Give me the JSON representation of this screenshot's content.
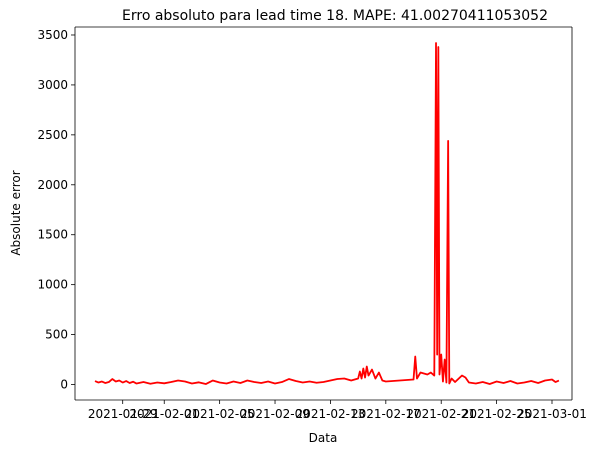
{
  "chart_data": {
    "type": "line",
    "title": "Erro absoluto para lead time 18. MAPE: 41.00270411053052",
    "xlabel": "Data",
    "ylabel": "Absolute error",
    "xlim": [
      "2021-01-27",
      "2021-03-01"
    ],
    "ylim": [
      -155,
      3580
    ],
    "grid": false,
    "legend": "none",
    "line_color": "#ff0000",
    "x_ticks": [
      {
        "label": "2021-01-29",
        "date": "2021-01-29"
      },
      {
        "label": "2021-02-01",
        "date": "2021-02-01"
      },
      {
        "label": "2021-02-05",
        "date": "2021-02-05"
      },
      {
        "label": "2021-02-09",
        "date": "2021-02-09"
      },
      {
        "label": "2021-02-13",
        "date": "2021-02-13"
      },
      {
        "label": "2021-02-17",
        "date": "2021-02-17"
      },
      {
        "label": "2021-02-21",
        "date": "2021-02-21"
      },
      {
        "label": "2021-02-25",
        "date": "2021-02-25"
      },
      {
        "label": "2021-03-01",
        "date": "2021-03-01"
      }
    ],
    "y_ticks": [
      0,
      500,
      1000,
      1500,
      2000,
      2500,
      3000,
      3500
    ],
    "series": [
      {
        "points": [
          [
            "2021-01-27 00:00",
            35
          ],
          [
            "2021-01-27 06:00",
            20
          ],
          [
            "2021-01-27 12:00",
            30
          ],
          [
            "2021-01-27 18:00",
            15
          ],
          [
            "2021-01-28 00:00",
            25
          ],
          [
            "2021-01-28 06:00",
            55
          ],
          [
            "2021-01-28 12:00",
            30
          ],
          [
            "2021-01-28 18:00",
            40
          ],
          [
            "2021-01-29 00:00",
            20
          ],
          [
            "2021-01-29 06:00",
            35
          ],
          [
            "2021-01-29 12:00",
            15
          ],
          [
            "2021-01-29 18:00",
            28
          ],
          [
            "2021-01-30 00:00",
            10
          ],
          [
            "2021-01-30 12:00",
            25
          ],
          [
            "2021-01-31 00:00",
            8
          ],
          [
            "2021-01-31 12:00",
            20
          ],
          [
            "2021-02-01 00:00",
            12
          ],
          [
            "2021-02-01 12:00",
            25
          ],
          [
            "2021-02-02 00:00",
            40
          ],
          [
            "2021-02-02 12:00",
            30
          ],
          [
            "2021-02-03 00:00",
            10
          ],
          [
            "2021-02-03 12:00",
            22
          ],
          [
            "2021-02-04 00:00",
            5
          ],
          [
            "2021-02-04 12:00",
            40
          ],
          [
            "2021-02-05 00:00",
            20
          ],
          [
            "2021-02-05 12:00",
            10
          ],
          [
            "2021-02-06 00:00",
            30
          ],
          [
            "2021-02-06 12:00",
            15
          ],
          [
            "2021-02-07 00:00",
            40
          ],
          [
            "2021-02-07 12:00",
            25
          ],
          [
            "2021-02-08 00:00",
            15
          ],
          [
            "2021-02-08 12:00",
            30
          ],
          [
            "2021-02-09 00:00",
            10
          ],
          [
            "2021-02-09 12:00",
            25
          ],
          [
            "2021-02-10 00:00",
            55
          ],
          [
            "2021-02-10 12:00",
            35
          ],
          [
            "2021-02-11 00:00",
            20
          ],
          [
            "2021-02-11 12:00",
            30
          ],
          [
            "2021-02-12 00:00",
            18
          ],
          [
            "2021-02-12 12:00",
            25
          ],
          [
            "2021-02-13 00:00",
            40
          ],
          [
            "2021-02-13 12:00",
            55
          ],
          [
            "2021-02-14 00:00",
            60
          ],
          [
            "2021-02-14 12:00",
            40
          ],
          [
            "2021-02-15 00:00",
            60
          ],
          [
            "2021-02-15 03:00",
            130
          ],
          [
            "2021-02-15 06:00",
            60
          ],
          [
            "2021-02-15 09:00",
            160
          ],
          [
            "2021-02-15 12:00",
            70
          ],
          [
            "2021-02-15 15:00",
            180
          ],
          [
            "2021-02-15 18:00",
            90
          ],
          [
            "2021-02-16 00:00",
            150
          ],
          [
            "2021-02-16 06:00",
            60
          ],
          [
            "2021-02-16 12:00",
            120
          ],
          [
            "2021-02-16 18:00",
            40
          ],
          [
            "2021-02-17 00:00",
            30
          ],
          [
            "2021-02-17 12:00",
            35
          ],
          [
            "2021-02-18 00:00",
            40
          ],
          [
            "2021-02-18 12:00",
            45
          ],
          [
            "2021-02-19 00:00",
            50
          ],
          [
            "2021-02-19 03:00",
            280
          ],
          [
            "2021-02-19 06:00",
            60
          ],
          [
            "2021-02-19 12:00",
            120
          ],
          [
            "2021-02-20 00:00",
            100
          ],
          [
            "2021-02-20 06:00",
            120
          ],
          [
            "2021-02-20 12:00",
            90
          ],
          [
            "2021-02-20 15:00",
            3420
          ],
          [
            "2021-02-20 17:00",
            300
          ],
          [
            "2021-02-20 19:00",
            3380
          ],
          [
            "2021-02-20 21:00",
            100
          ],
          [
            "2021-02-21 00:00",
            300
          ],
          [
            "2021-02-21 03:00",
            30
          ],
          [
            "2021-02-21 06:00",
            250
          ],
          [
            "2021-02-21 09:00",
            20
          ],
          [
            "2021-02-21 12:00",
            2440
          ],
          [
            "2021-02-21 14:00",
            10
          ],
          [
            "2021-02-21 18:00",
            60
          ],
          [
            "2021-02-22 00:00",
            25
          ],
          [
            "2021-02-22 12:00",
            90
          ],
          [
            "2021-02-22 18:00",
            70
          ],
          [
            "2021-02-23 00:00",
            20
          ],
          [
            "2021-02-23 12:00",
            10
          ],
          [
            "2021-02-24 00:00",
            25
          ],
          [
            "2021-02-24 12:00",
            5
          ],
          [
            "2021-02-25 00:00",
            30
          ],
          [
            "2021-02-25 12:00",
            15
          ],
          [
            "2021-02-26 00:00",
            35
          ],
          [
            "2021-02-26 12:00",
            10
          ],
          [
            "2021-02-27 00:00",
            20
          ],
          [
            "2021-02-27 12:00",
            35
          ],
          [
            "2021-02-28 00:00",
            15
          ],
          [
            "2021-02-28 12:00",
            40
          ],
          [
            "2021-03-01 00:00",
            50
          ],
          [
            "2021-03-01 06:00",
            25
          ],
          [
            "2021-03-01 12:00",
            40
          ]
        ]
      }
    ]
  }
}
